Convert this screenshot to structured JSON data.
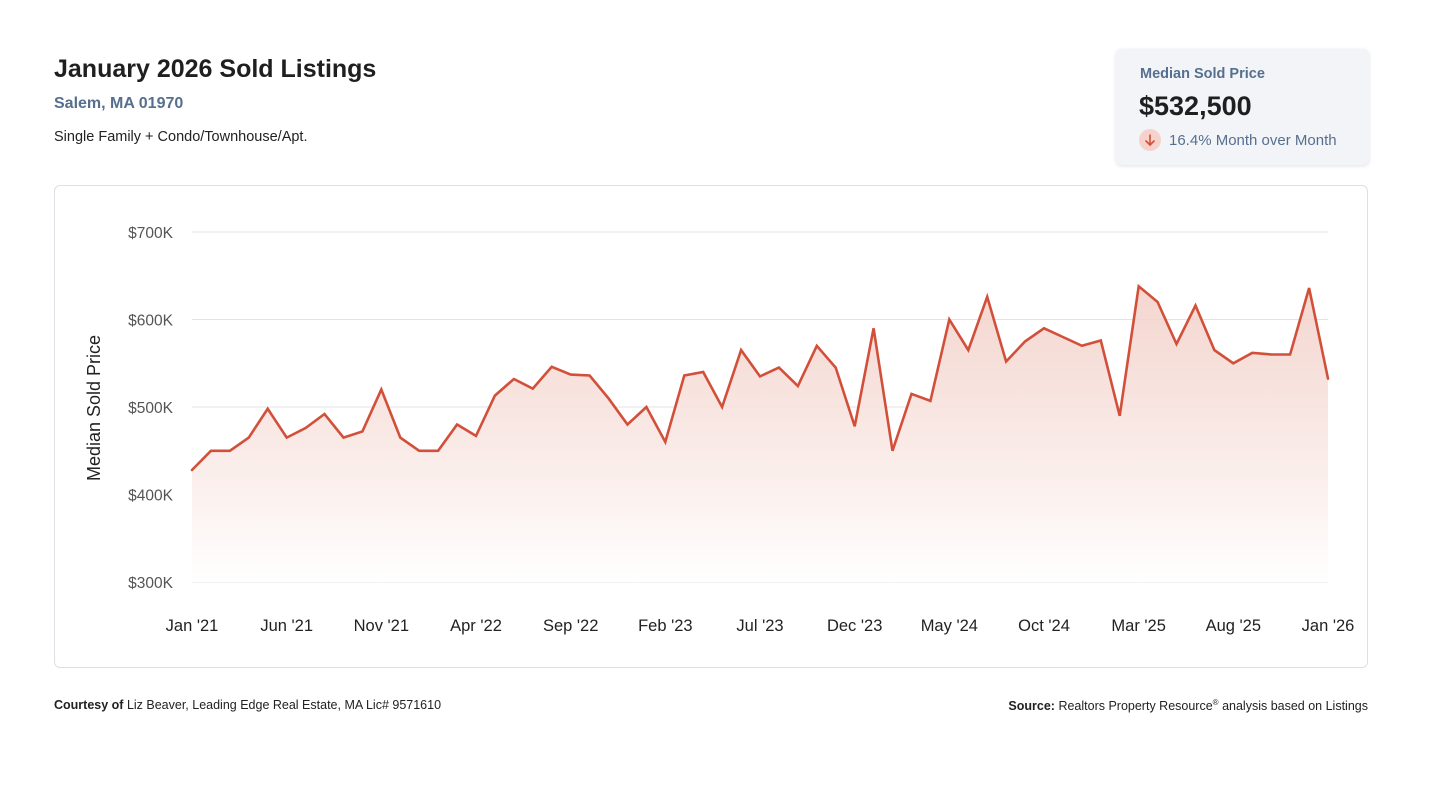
{
  "header": {
    "title": "January 2026 Sold Listings",
    "subtitle": "Salem, MA 01970",
    "description": "Single Family + Condo/Townhouse/Apt."
  },
  "stat_card": {
    "label": "Median Sold Price",
    "value": "$532,500",
    "change": "16.4% Month over Month",
    "direction_icon": "arrow-down-icon"
  },
  "colors": {
    "line": "#d2503a",
    "fill_top": "#f2cfc7",
    "grid": "#e3e3e3",
    "axis_text": "#222222",
    "accent_text": "#566f8f"
  },
  "footer": {
    "courtesy_label": "Courtesy of",
    "courtesy_text": "Liz Beaver, Leading Edge Real Estate, MA Lic# 9571610",
    "source_label": "Source:",
    "source_text": "Realtors Property Resource",
    "source_mark": "®",
    "source_suffix": "analysis based on Listings"
  },
  "chart_data": {
    "type": "area",
    "ylabel": "Median Sold Price",
    "ylim": [
      300000,
      700000
    ],
    "yticks": [
      300000,
      400000,
      500000,
      600000,
      700000
    ],
    "ytick_labels": [
      "$300K",
      "$400K",
      "$500K",
      "$600K",
      "$700K"
    ],
    "xtick_labels": [
      "Jan '21",
      "Jun '21",
      "Nov '21",
      "Apr '22",
      "Sep '22",
      "Feb '23",
      "Jul '23",
      "Dec '23",
      "May '24",
      "Oct '24",
      "Mar '25",
      "Aug '25",
      "Jan '26"
    ],
    "x": [
      "2021-01",
      "2021-02",
      "2021-03",
      "2021-04",
      "2021-05",
      "2021-06",
      "2021-07",
      "2021-08",
      "2021-09",
      "2021-10",
      "2021-11",
      "2021-12",
      "2022-01",
      "2022-02",
      "2022-03",
      "2022-04",
      "2022-05",
      "2022-06",
      "2022-07",
      "2022-08",
      "2022-09",
      "2022-10",
      "2022-11",
      "2022-12",
      "2023-01",
      "2023-02",
      "2023-03",
      "2023-04",
      "2023-05",
      "2023-06",
      "2023-07",
      "2023-08",
      "2023-09",
      "2023-10",
      "2023-11",
      "2023-12",
      "2024-01",
      "2024-02",
      "2024-03",
      "2024-04",
      "2024-05",
      "2024-06",
      "2024-07",
      "2024-08",
      "2024-09",
      "2024-10",
      "2024-11",
      "2024-12",
      "2025-01",
      "2025-02",
      "2025-03",
      "2025-04",
      "2025-05",
      "2025-06",
      "2025-07",
      "2025-08",
      "2025-09",
      "2025-10",
      "2025-11",
      "2025-12",
      "2026-01"
    ],
    "series": [
      {
        "values": [
          428000,
          450000,
          450000,
          465000,
          498000,
          465000,
          476000,
          492000,
          465000,
          472000,
          520000,
          465000,
          450000,
          450000,
          480000,
          467000,
          513000,
          532000,
          521000,
          546000,
          537000,
          536000,
          510000,
          480000,
          500000,
          460000,
          536000,
          540000,
          500000,
          565000,
          535000,
          545000,
          524000,
          570000,
          545000,
          478000,
          590000,
          450000,
          515000,
          507000,
          600000,
          565000,
          626000,
          552000,
          575000,
          590000,
          580000,
          570000,
          576000,
          490000,
          638000,
          620000,
          572000,
          616000,
          565000,
          550000,
          562000,
          560000,
          560000,
          636000,
          532500
        ]
      }
    ],
    "grid": true,
    "legend": "none"
  }
}
